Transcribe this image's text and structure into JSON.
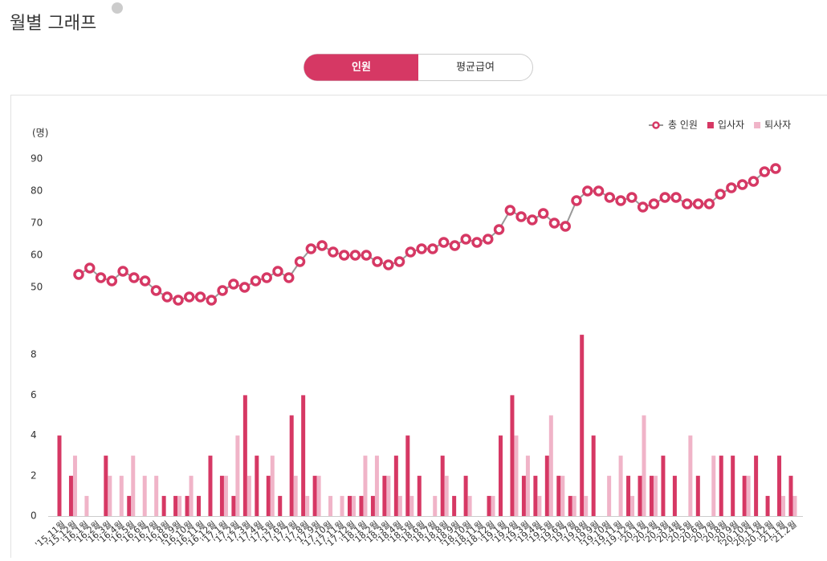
{
  "header": {
    "title": "월별 그래프",
    "tabs": [
      "인원",
      "평균급여"
    ]
  },
  "chart_data": [
    {
      "type": "line",
      "y_label": "(명)",
      "series": [
        {
          "name": "총 인원",
          "color": "#d63864",
          "values": [
            54,
            56,
            53,
            52,
            55,
            53,
            52,
            49,
            47,
            46,
            47,
            47,
            46,
            49,
            51,
            50,
            52,
            53,
            55,
            53,
            58,
            62,
            63,
            61,
            60,
            60,
            60,
            58,
            57,
            58,
            61,
            62,
            62,
            64,
            63,
            65,
            64,
            65,
            68,
            74,
            72,
            71,
            73,
            70,
            69,
            77,
            80,
            80,
            78,
            77,
            78,
            75,
            76,
            78,
            78,
            76,
            76,
            76,
            79,
            81,
            82,
            83,
            86,
            87
          ]
        }
      ],
      "ylim": [
        45,
        95
      ],
      "yticks": [
        50,
        60,
        70,
        80,
        90
      ],
      "legend": "top-right"
    },
    {
      "type": "bar",
      "categories": [
        "'15.11월",
        "'15.12월",
        "'16.1월",
        "'16.2월",
        "'16.3월",
        "'16.4월",
        "'16.5월",
        "'16.6월",
        "'16.7월",
        "'16.8월",
        "'16.9월",
        "'16.10월",
        "'16.11월",
        "'16.12월",
        "'17.1월",
        "'17.2월",
        "'17.3월",
        "'17.4월",
        "'17.5월",
        "'17.6월",
        "'17.7월",
        "'17.8월",
        "'17.9월",
        "'17.10월",
        "'17.11월",
        "'17.12월",
        "'18.1월",
        "'18.2월",
        "'18.3월",
        "'18.4월",
        "'18.5월",
        "'18.6월",
        "'18.7월",
        "'18.8월",
        "'18.9월",
        "'18.10월",
        "'18.11월",
        "'18.12월",
        "'19.1월",
        "'19.2월",
        "'19.3월",
        "'19.4월",
        "'19.5월",
        "'19.6월",
        "'19.7월",
        "'19.8월",
        "'19.9월",
        "'19.10월",
        "'19.11월",
        "'19.12월",
        "'20.1월",
        "'20.2월",
        "'20.3월",
        "'20.4월",
        "'20.5월",
        "'20.6월",
        "'20.7월",
        "'20.8월",
        "'20.9월",
        "'20.10월",
        "'20.11월",
        "'20.12월",
        "'21.1월",
        "'21.2월"
      ],
      "series": [
        {
          "name": "입사자",
          "color": "#d63864",
          "values": [
            4,
            2,
            0,
            0,
            3,
            0,
            1,
            0,
            0,
            1,
            1,
            1,
            1,
            3,
            2,
            1,
            6,
            3,
            2,
            1,
            5,
            6,
            2,
            0,
            0,
            1,
            1,
            1,
            2,
            3,
            4,
            2,
            0,
            3,
            1,
            2,
            0,
            1,
            4,
            6,
            2,
            2,
            3,
            2,
            1,
            9,
            4,
            0,
            0,
            2,
            2,
            2,
            3,
            2,
            0,
            2,
            0,
            3,
            3,
            2,
            3,
            1,
            3,
            2
          ]
        },
        {
          "name": "퇴사자",
          "color": "#f0b4c8",
          "values": [
            0,
            3,
            1,
            0,
            2,
            2,
            3,
            2,
            2,
            0,
            1,
            2,
            0,
            0,
            2,
            4,
            2,
            0,
            3,
            0,
            2,
            1,
            2,
            1,
            1,
            1,
            3,
            3,
            2,
            1,
            1,
            0,
            1,
            2,
            0,
            1,
            0,
            1,
            0,
            4,
            3,
            1,
            5,
            2,
            1,
            1,
            0,
            2,
            3,
            1,
            5,
            2,
            0,
            0,
            4,
            0,
            3,
            0,
            0,
            2,
            0,
            0,
            1,
            1
          ]
        }
      ],
      "ylim": [
        0,
        10
      ],
      "yticks": [
        0,
        2,
        4,
        6,
        8
      ]
    }
  ]
}
